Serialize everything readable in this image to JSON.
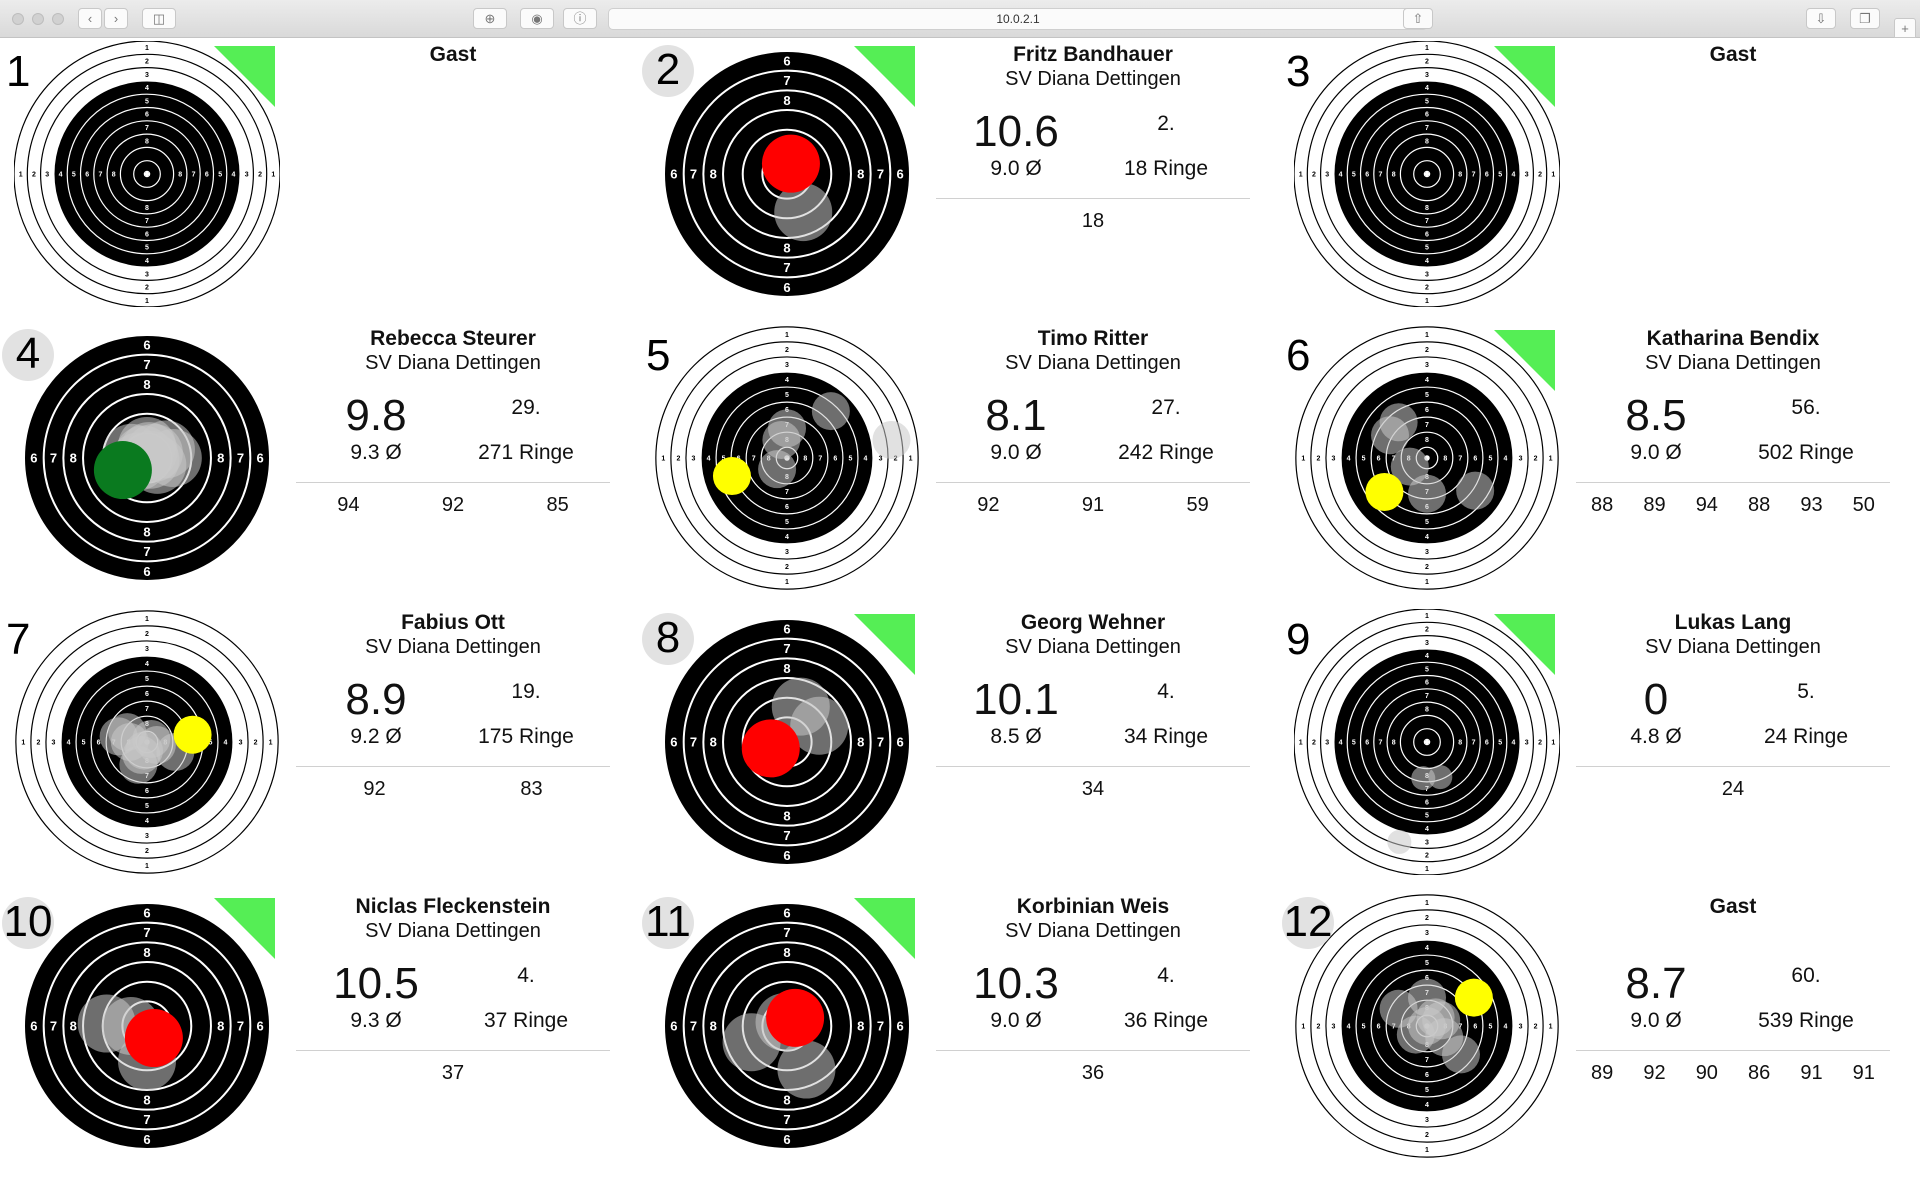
{
  "browser": {
    "url": "10.0.2.1"
  },
  "colors": {
    "target_black": "#000000",
    "target_white": "#ffffff",
    "shot_last_red": "#ff0000",
    "shot_last_yellow": "#ffff00",
    "shot_last_green": "#0a7a1f",
    "corner_green": "#55ee55"
  },
  "lanes": [
    {
      "number": "1",
      "name": "Gast",
      "club": "",
      "last_shot": "",
      "average": "",
      "rank": "",
      "total": "",
      "series": [],
      "target": {
        "type": "rifle",
        "latest": null,
        "shots": [],
        "corner": true
      }
    },
    {
      "number": "2",
      "name": "Fritz Bandhauer",
      "club": "SV Diana Dettingen",
      "last_shot": "10.6",
      "average": "9.0 Ø",
      "rank": "2.",
      "total": "18 Ringe",
      "series": [
        "18"
      ],
      "target": {
        "type": "pistol",
        "latest": {
          "dx": 1.6,
          "dy": -4.2,
          "c": "red"
        },
        "shots": [
          {
            "dx": 6.6,
            "dy": 15.5
          }
        ],
        "corner": true
      }
    },
    {
      "number": "3",
      "name": "Gast",
      "club": "",
      "last_shot": "",
      "average": "",
      "rank": "",
      "total": "",
      "series": [],
      "target": {
        "type": "rifle",
        "latest": null,
        "shots": [],
        "corner": true
      }
    },
    {
      "number": "4",
      "name": "Rebecca Steurer",
      "club": "SV Diana Dettingen",
      "last_shot": "9.8",
      "average": "9.3 Ø",
      "rank": "29.",
      "total": "271 Ringe",
      "series": [
        "94",
        "92",
        "85"
      ],
      "target": {
        "type": "pistol",
        "latest": {
          "dx": -9.8,
          "dy": 4.9,
          "c": "green"
        },
        "shots": [
          {
            "dx": 0.0,
            "dy": -4.9
          },
          {
            "dx": 2.8,
            "dy": -2.1
          },
          {
            "dx": 1.4,
            "dy": 0.7
          },
          {
            "dx": -1.4,
            "dy": -1.4
          },
          {
            "dx": 7.7,
            "dy": -3.5
          },
          {
            "dx": 10.5,
            "dy": 0.0
          },
          {
            "dx": -6.3,
            "dy": -2.1
          },
          {
            "dx": 4.2,
            "dy": 2.8
          },
          {
            "dx": -3.5,
            "dy": 1.4
          },
          {
            "dx": 0.7,
            "dy": -2.8
          }
        ],
        "corner": false
      }
    },
    {
      "number": "5",
      "name": "Timo Ritter",
      "club": "SV Diana Dettingen",
      "last_shot": "8.1",
      "average": "9.0 Ø",
      "rank": "27.",
      "total": "242 Ringe",
      "series": [
        "92",
        "91",
        "59"
      ],
      "target": {
        "type": "air",
        "latest": {
          "dx": -12.8,
          "dy": 4.2,
          "c": "yellow"
        },
        "shots": [
          {
            "dx": 10.2,
            "dy": -10.9
          },
          {
            "dx": 0.0,
            "dy": -6.9
          },
          {
            "dx": -1.3,
            "dy": -4.2
          },
          {
            "dx": -2.3,
            "dy": 2.6
          },
          {
            "dx": 24.3,
            "dy": -4.2
          }
        ],
        "corner": false
      }
    },
    {
      "number": "6",
      "name": "Katharina Bendix",
      "club": "SV Diana Dettingen",
      "last_shot": "8.5",
      "average": "9.0 Ø",
      "rank": "56.",
      "total": "502 Ringe",
      "series": [
        "88",
        "89",
        "94",
        "88",
        "93",
        "50"
      ],
      "target": {
        "type": "air",
        "latest": {
          "dx": -9.9,
          "dy": 7.9,
          "c": "yellow"
        },
        "shots": [
          {
            "dx": -6.6,
            "dy": -8.3
          },
          {
            "dx": -8.6,
            "dy": -5.3
          },
          {
            "dx": 0.0,
            "dy": 8.3
          },
          {
            "dx": 11.2,
            "dy": 7.6
          },
          {
            "dx": -4.0,
            "dy": 2.0
          }
        ],
        "corner": true
      }
    },
    {
      "number": "7",
      "name": "Fabius Ott",
      "club": "SV Diana Dettingen",
      "last_shot": "8.9",
      "average": "9.2 Ø",
      "rank": "19.",
      "total": "175 Ringe",
      "series": [
        "92",
        "83"
      ],
      "target": {
        "type": "air",
        "latest": {
          "dx": 10.6,
          "dy": -1.7,
          "c": "yellow"
        },
        "shots": [
          {
            "dx": -4.6,
            "dy": -2.3
          },
          {
            "dx": -4.0,
            "dy": 0.0
          },
          {
            "dx": -6.6,
            "dy": -1.3
          },
          {
            "dx": -0.7,
            "dy": 2.0
          },
          {
            "dx": -2.0,
            "dy": 5.3
          },
          {
            "dx": 6.6,
            "dy": 2.3
          },
          {
            "dx": 2.3,
            "dy": 0.7
          },
          {
            "dx": -1.3,
            "dy": 3.0
          },
          {
            "dx": 1.0,
            "dy": -0.7
          }
        ],
        "corner": false
      }
    },
    {
      "number": "8",
      "name": "Georg Wehner",
      "club": "SV Diana Dettingen",
      "last_shot": "10.1",
      "average": "8.5 Ø",
      "rank": "4.",
      "total": "34 Ringe",
      "series": [
        "34"
      ],
      "target": {
        "type": "pistol",
        "latest": {
          "dx": -6.6,
          "dy": 2.6,
          "c": "red"
        },
        "shots": [
          {
            "dx": 5.6,
            "dy": -14.4
          },
          {
            "dx": 13.1,
            "dy": -6.6
          }
        ],
        "corner": true
      }
    },
    {
      "number": "9",
      "name": "Lukas Lang",
      "club": "SV Diana Dettingen",
      "last_shot": "0",
      "average": "4.8 Ø",
      "rank": "5.",
      "total": "24 Ringe",
      "series": [
        "24"
      ],
      "target": {
        "type": "rifle",
        "latest": null,
        "shots": [
          {
            "dx": -0.7,
            "dy": 6.8
          },
          {
            "dx": 2.5,
            "dy": 6.6
          },
          {
            "dx": -5.2,
            "dy": 18.8
          }
        ],
        "corner": true
      }
    },
    {
      "number": "10",
      "name": "Niclas Fleckenstein",
      "club": "SV Diana Dettingen",
      "last_shot": "10.5",
      "average": "9.3 Ø",
      "rank": "4.",
      "total": "37 Ringe",
      "series": [
        "37"
      ],
      "target": {
        "type": "pistol",
        "latest": {
          "dx": 2.8,
          "dy": 4.9,
          "c": "red"
        },
        "shots": [
          {
            "dx": -16.4,
            "dy": -1.0
          },
          {
            "dx": -6.6,
            "dy": 0.0
          },
          {
            "dx": 0.0,
            "dy": 14.4
          }
        ],
        "corner": true
      }
    },
    {
      "number": "11",
      "name": "Korbinian Weis",
      "club": "SV Diana Dettingen",
      "last_shot": "10.3",
      "average": "9.0 Ø",
      "rank": "4.",
      "total": "36 Ringe",
      "series": [
        "36"
      ],
      "target": {
        "type": "pistol",
        "latest": {
          "dx": 3.3,
          "dy": -3.3,
          "c": "red"
        },
        "shots": [
          {
            "dx": -14.4,
            "dy": 6.6
          },
          {
            "dx": 7.9,
            "dy": 17.7
          },
          {
            "dx": -1.0,
            "dy": -1.6
          }
        ],
        "corner": true
      }
    },
    {
      "number": "12",
      "name": "Gast",
      "club": "",
      "last_shot": "8.7",
      "average": "9.0 Ø",
      "rank": "60.",
      "total": "539 Ringe",
      "series": [
        "89",
        "92",
        "90",
        "86",
        "91",
        "91"
      ],
      "target": {
        "type": "air",
        "latest": {
          "dx": 10.9,
          "dy": -6.6,
          "c": "yellow"
        },
        "shots": [
          {
            "dx": -6.6,
            "dy": -4.0
          },
          {
            "dx": 0.0,
            "dy": -6.6
          },
          {
            "dx": 2.0,
            "dy": -2.0
          },
          {
            "dx": 0.0,
            "dy": 0.0
          },
          {
            "dx": 4.0,
            "dy": 2.6
          },
          {
            "dx": 7.9,
            "dy": 6.6
          },
          {
            "dx": -2.6,
            "dy": 2.0
          },
          {
            "dx": 3.3,
            "dy": -1.3
          }
        ],
        "corner": false
      }
    }
  ]
}
